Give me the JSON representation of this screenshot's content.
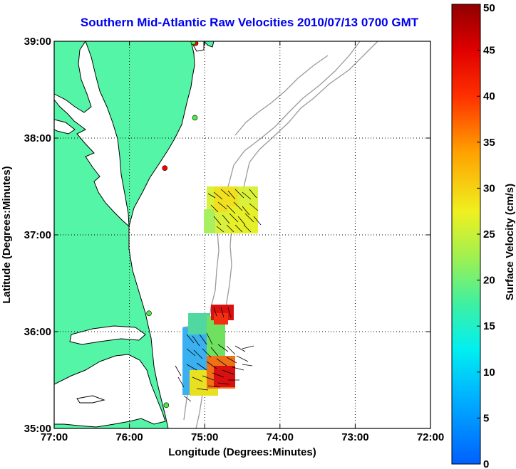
{
  "title": "Southern Mid-Atlantic Raw Velocities 2010/07/13 0700 GMT",
  "map": {
    "xlabel": "Longitude (Degrees:Minutes)",
    "ylabel": "Latitude (Degrees:Minutes)",
    "x_ticks": [
      {
        "value": -77,
        "label": "77:00"
      },
      {
        "value": -76,
        "label": "76:00"
      },
      {
        "value": -75,
        "label": "75:00"
      },
      {
        "value": -74,
        "label": "74:00"
      },
      {
        "value": -73,
        "label": "73:00"
      },
      {
        "value": -72,
        "label": "72:00"
      }
    ],
    "y_ticks": [
      {
        "value": 35,
        "label": "35:00"
      },
      {
        "value": 36,
        "label": "36:00"
      },
      {
        "value": 37,
        "label": "37:00"
      },
      {
        "value": 38,
        "label": "38:00"
      },
      {
        "value": 39,
        "label": "39:00"
      }
    ],
    "lon_range": [
      -77,
      -72
    ],
    "lat_range": [
      35,
      39
    ],
    "grid": "dotted",
    "colors": {
      "land": "#55f5a8",
      "coast": "#000000",
      "bathymetry": "#9a9a9a"
    },
    "stations": [
      {
        "lon": -75.12,
        "lat": 38.98,
        "color": "#ff0000"
      },
      {
        "lon": -75.15,
        "lat": 38.99,
        "color": "#44ee44"
      },
      {
        "lon": -75.13,
        "lat": 38.21,
        "color": "#44ee44"
      },
      {
        "lon": -75.53,
        "lat": 37.69,
        "color": "#ff0000"
      },
      {
        "lon": -75.74,
        "lat": 36.19,
        "color": "#44ee44"
      },
      {
        "lon": -75.51,
        "lat": 35.24,
        "color": "#44ee44"
      }
    ]
  },
  "colorbar": {
    "label": "Surface Velocity (cm/s)",
    "min": 0,
    "max": 50,
    "ticks": [
      "0",
      "5",
      "10",
      "15",
      "20",
      "25",
      "30",
      "35",
      "40",
      "45",
      "50"
    ]
  },
  "chart_data": {
    "type": "heatmap",
    "title": "Southern Mid-Atlantic Raw Velocities 2010/07/13 0700 GMT",
    "xlabel": "Longitude (Degrees:Minutes)",
    "ylabel": "Latitude (Degrees:Minutes)",
    "colorbar_label": "Surface Velocity (cm/s)",
    "xlim": [
      -77,
      -72
    ],
    "ylim": [
      35,
      39
    ],
    "clim": [
      0,
      50
    ],
    "regions": [
      {
        "name": "",
        "lon": [
          -75.0,
          -74.6
        ],
        "lat": [
          37.0,
          37.5
        ],
        "speed_range": [
          15,
          35
        ]
      },
      {
        "name": "",
        "lon": [
          -75.3,
          -74.7
        ],
        "lat": [
          35.3,
          36.3
        ],
        "speed_range": [
          5,
          50
        ]
      }
    ],
    "samples": [
      {
        "lon": -75.0,
        "lat": 37.2,
        "speed": 22
      },
      {
        "lon": -74.95,
        "lat": 37.1,
        "speed": 24
      },
      {
        "lon": -74.85,
        "lat": 37.3,
        "speed": 25
      },
      {
        "lon": -74.75,
        "lat": 37.2,
        "speed": 23
      },
      {
        "lon": -74.7,
        "lat": 37.4,
        "speed": 21
      },
      {
        "lon": -74.8,
        "lat": 37.05,
        "speed": 26
      },
      {
        "lon": -75.2,
        "lat": 35.9,
        "speed": 10
      },
      {
        "lon": -75.2,
        "lat": 35.6,
        "speed": 12
      },
      {
        "lon": -75.1,
        "lat": 35.8,
        "speed": 14
      },
      {
        "lon": -75.0,
        "lat": 35.55,
        "speed": 25
      },
      {
        "lon": -74.9,
        "lat": 35.5,
        "speed": 38
      },
      {
        "lon": -74.85,
        "lat": 36.2,
        "speed": 48
      },
      {
        "lon": -74.95,
        "lat": 36.15,
        "speed": 45
      },
      {
        "lon": -74.85,
        "lat": 35.45,
        "speed": 42
      },
      {
        "lon": -75.05,
        "lat": 35.4,
        "speed": 30
      },
      {
        "lon": -75.2,
        "lat": 35.35,
        "speed": 20
      }
    ]
  }
}
